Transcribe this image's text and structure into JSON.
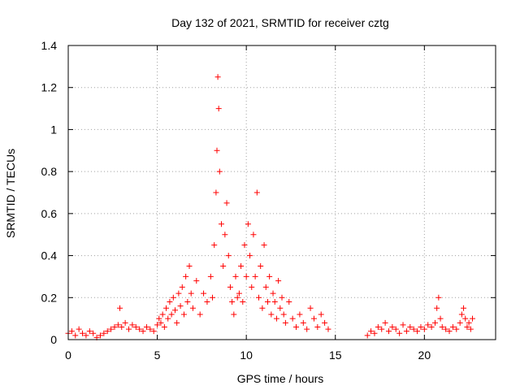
{
  "chart_data": {
    "type": "scatter",
    "title": "Day 132 of 2021, SRMTID for receiver cztg",
    "xlabel": "GPS time / hours",
    "ylabel": "SRMTID / TECUs",
    "xlim": [
      0,
      24
    ],
    "ylim": [
      0,
      1.4
    ],
    "xticks": [
      0,
      5,
      10,
      15,
      20
    ],
    "xtick_labels": [
      "0",
      "5",
      "10",
      "15",
      "20"
    ],
    "yticks": [
      0,
      0.2,
      0.4,
      0.6,
      0.8,
      1.0,
      1.2,
      1.4
    ],
    "ytick_labels": [
      "0",
      "0.2",
      "0.4",
      "0.6",
      "0.8",
      "1",
      "1.2",
      "1.4"
    ],
    "grid": true,
    "marker": "plus",
    "color": "#ff0000",
    "series": [
      {
        "name": "SRMTID",
        "x": [
          0.0,
          0.2,
          0.4,
          0.6,
          0.8,
          1.0,
          1.2,
          1.4,
          1.6,
          1.8,
          2.0,
          2.2,
          2.4,
          2.6,
          2.8,
          2.9,
          3.0,
          3.2,
          3.4,
          3.6,
          3.8,
          4.0,
          4.2,
          4.4,
          4.6,
          4.8,
          5.0,
          5.1,
          5.2,
          5.3,
          5.4,
          5.5,
          5.6,
          5.7,
          5.8,
          5.9,
          6.0,
          6.1,
          6.2,
          6.3,
          6.4,
          6.5,
          6.6,
          6.7,
          6.8,
          6.9,
          7.0,
          7.2,
          7.4,
          7.6,
          7.8,
          8.0,
          8.1,
          8.2,
          8.3,
          8.35,
          8.4,
          8.45,
          8.5,
          8.6,
          8.7,
          8.8,
          8.9,
          9.0,
          9.1,
          9.2,
          9.3,
          9.4,
          9.5,
          9.6,
          9.7,
          9.8,
          9.9,
          10.0,
          10.1,
          10.2,
          10.3,
          10.4,
          10.5,
          10.6,
          10.7,
          10.8,
          10.9,
          11.0,
          11.1,
          11.2,
          11.3,
          11.4,
          11.5,
          11.6,
          11.7,
          11.8,
          11.9,
          12.0,
          12.1,
          12.2,
          12.4,
          12.6,
          12.8,
          13.0,
          13.2,
          13.4,
          13.6,
          13.8,
          14.0,
          14.2,
          14.4,
          14.6,
          16.8,
          17.0,
          17.2,
          17.4,
          17.6,
          17.8,
          18.0,
          18.2,
          18.4,
          18.6,
          18.8,
          19.0,
          19.2,
          19.4,
          19.6,
          19.8,
          20.0,
          20.2,
          20.4,
          20.6,
          20.7,
          20.8,
          20.9,
          21.0,
          21.2,
          21.4,
          21.6,
          21.8,
          22.0,
          22.1,
          22.2,
          22.3,
          22.4,
          22.5,
          22.6,
          22.7
        ],
        "y": [
          0.03,
          0.04,
          0.02,
          0.05,
          0.03,
          0.02,
          0.04,
          0.03,
          0.01,
          0.02,
          0.03,
          0.04,
          0.05,
          0.06,
          0.07,
          0.15,
          0.06,
          0.08,
          0.05,
          0.07,
          0.06,
          0.05,
          0.04,
          0.06,
          0.05,
          0.04,
          0.07,
          0.1,
          0.08,
          0.12,
          0.06,
          0.15,
          0.1,
          0.18,
          0.12,
          0.2,
          0.14,
          0.08,
          0.22,
          0.16,
          0.25,
          0.12,
          0.3,
          0.18,
          0.35,
          0.22,
          0.15,
          0.28,
          0.12,
          0.22,
          0.18,
          0.3,
          0.2,
          0.45,
          0.7,
          0.9,
          1.25,
          1.1,
          0.8,
          0.55,
          0.35,
          0.5,
          0.65,
          0.4,
          0.25,
          0.18,
          0.12,
          0.3,
          0.2,
          0.22,
          0.35,
          0.18,
          0.45,
          0.3,
          0.55,
          0.4,
          0.25,
          0.5,
          0.3,
          0.7,
          0.2,
          0.35,
          0.15,
          0.45,
          0.25,
          0.18,
          0.3,
          0.12,
          0.22,
          0.18,
          0.1,
          0.28,
          0.15,
          0.2,
          0.12,
          0.08,
          0.18,
          0.1,
          0.06,
          0.12,
          0.08,
          0.05,
          0.15,
          0.1,
          0.06,
          0.12,
          0.08,
          0.05,
          0.02,
          0.04,
          0.03,
          0.06,
          0.05,
          0.08,
          0.04,
          0.06,
          0.05,
          0.03,
          0.07,
          0.04,
          0.06,
          0.05,
          0.04,
          0.06,
          0.05,
          0.07,
          0.06,
          0.08,
          0.15,
          0.2,
          0.1,
          0.06,
          0.05,
          0.04,
          0.06,
          0.05,
          0.08,
          0.12,
          0.15,
          0.1,
          0.06,
          0.08,
          0.05,
          0.1
        ]
      }
    ]
  }
}
